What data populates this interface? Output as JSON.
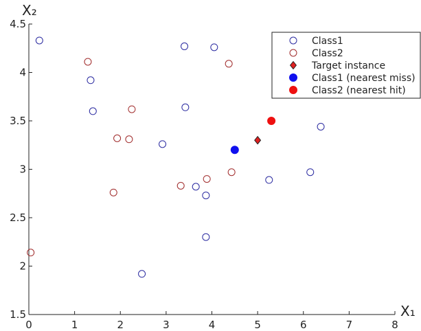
{
  "chart_data": {
    "type": "scatter",
    "xlabel": "X₁",
    "ylabel": "X₂",
    "xlim": [
      0,
      8
    ],
    "ylim": [
      1.5,
      4.5
    ],
    "xticks": [
      "0",
      "1",
      "2",
      "3",
      "4",
      "5",
      "6",
      "7",
      "8"
    ],
    "yticks": [
      "1.5",
      "2",
      "2.5",
      "3",
      "3.5",
      "4",
      "4.5"
    ],
    "legend_position": "top-right",
    "series": [
      {
        "name": "Class1",
        "marker": "open-circle",
        "color": "#2a2aa0",
        "points": [
          [
            0.23,
            4.33
          ],
          [
            1.35,
            3.92
          ],
          [
            1.4,
            3.6
          ],
          [
            3.4,
            4.27
          ],
          [
            4.05,
            4.26
          ],
          [
            3.42,
            3.64
          ],
          [
            2.92,
            3.26
          ],
          [
            6.38,
            3.44
          ],
          [
            6.15,
            2.97
          ],
          [
            5.25,
            2.89
          ],
          [
            3.65,
            2.82
          ],
          [
            3.87,
            2.73
          ],
          [
            3.87,
            2.3
          ],
          [
            2.47,
            1.92
          ]
        ]
      },
      {
        "name": "Class2",
        "marker": "open-circle",
        "color": "#a02a2a",
        "points": [
          [
            1.29,
            4.11
          ],
          [
            4.37,
            4.09
          ],
          [
            2.25,
            3.62
          ],
          [
            1.93,
            3.32
          ],
          [
            2.19,
            3.31
          ],
          [
            4.43,
            2.97
          ],
          [
            3.32,
            2.83
          ],
          [
            3.89,
            2.9
          ],
          [
            1.85,
            2.76
          ],
          [
            0.04,
            2.14
          ]
        ]
      },
      {
        "name": "Target instance",
        "marker": "diamond",
        "color": "#e02020",
        "points": [
          [
            5.0,
            3.3
          ]
        ]
      },
      {
        "name": "Class1 (nearest miss)",
        "marker": "filled-circle",
        "color": "#1010ee",
        "points": [
          [
            4.5,
            3.2
          ]
        ]
      },
      {
        "name": "Class2 (nearest hit)",
        "marker": "filled-circle",
        "color": "#ee1010",
        "points": [
          [
            5.3,
            3.5
          ]
        ]
      }
    ]
  }
}
